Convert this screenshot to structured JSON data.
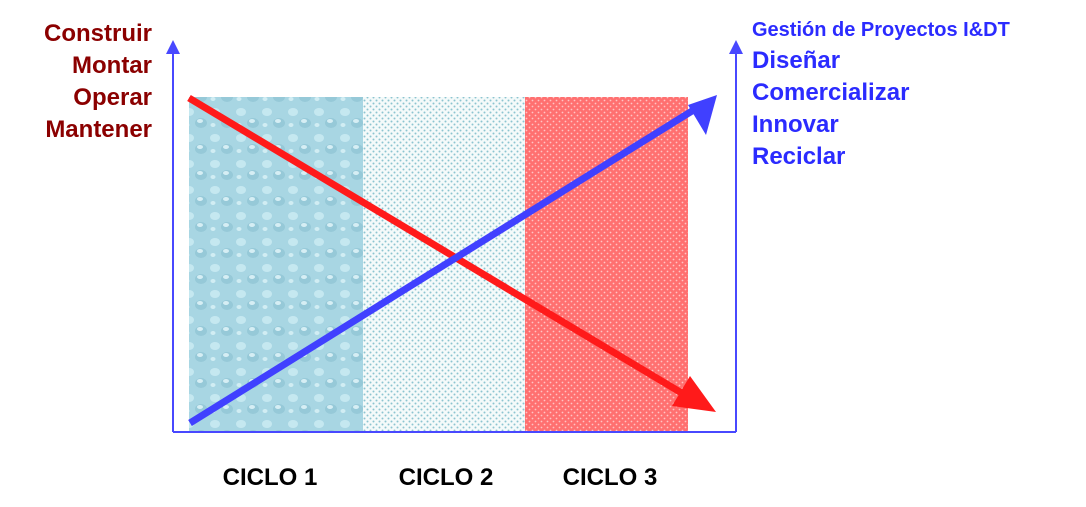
{
  "left_axis": {
    "items": [
      "Construir",
      "Montar",
      "Operar",
      "Mantener"
    ],
    "color": "#8b0000"
  },
  "right_axis": {
    "items": [
      "Gestión de Proyectos I&DT",
      "Diseñar",
      "Comercializar",
      "Innovar",
      "Reciclar"
    ],
    "color": "#2b2bff"
  },
  "cycles": [
    "CICLO 1",
    "CICLO 2",
    "CICLO 3"
  ],
  "colors": {
    "axis": "#4848ff",
    "decreasing_arrow": "#ff1a1a",
    "increasing_arrow": "#4040ff",
    "cycle_1_fill": "#a6d8e4",
    "cycle_2_fill": "#eef6f6",
    "cycle_3_fill": "#ff7f7f"
  }
}
